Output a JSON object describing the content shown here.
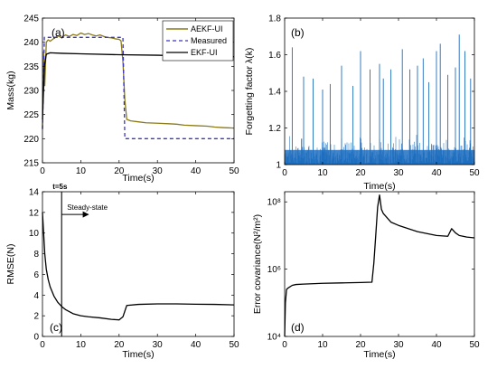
{
  "chart_data": [
    {
      "id": "a",
      "type": "line",
      "panel_label": "(a)",
      "xlabel": "Time(s)",
      "ylabel": "Mass(kg)",
      "xlim": [
        0,
        50
      ],
      "ylim": [
        215,
        245
      ],
      "x_ticks": [
        0,
        10,
        20,
        30,
        40,
        50
      ],
      "y_ticks": [
        215,
        220,
        225,
        230,
        235,
        240,
        245
      ],
      "legend": {
        "placement": "top-right",
        "entries": [
          "AEKF-UI",
          "Measured",
          "EKF-UI"
        ]
      },
      "series": [
        {
          "name": "AEKF-UI",
          "color": "#8b7a18",
          "style": "solid",
          "x": [
            0,
            0.3,
            0.6,
            1,
            1.5,
            2,
            3,
            4,
            5,
            6,
            7,
            8,
            9,
            10,
            11,
            12,
            13,
            14,
            15,
            16,
            17,
            18,
            19,
            20,
            20.5,
            21,
            21.5,
            22,
            23,
            25,
            27,
            30,
            33,
            35,
            37,
            40,
            43,
            45,
            47,
            50
          ],
          "y": [
            222,
            238,
            231,
            240,
            240.5,
            240.2,
            240.8,
            241.3,
            241,
            241.5,
            241.2,
            241.6,
            241.4,
            241.9,
            241.6,
            241.8,
            241.5,
            241.3,
            241.5,
            241.2,
            241,
            240.9,
            240.7,
            240.6,
            240.3,
            236,
            228,
            224,
            223.7,
            223.5,
            223.3,
            223.2,
            223.1,
            223,
            222.8,
            222.7,
            222.6,
            222.4,
            222.3,
            222.2
          ]
        },
        {
          "name": "Measured",
          "color": "#3a36c8",
          "style": "dashed",
          "x": [
            0,
            0.5,
            21,
            21.5,
            50
          ],
          "y": [
            222,
            241,
            241,
            220,
            220
          ]
        },
        {
          "name": "EKF-UI",
          "color": "#000000",
          "style": "solid",
          "x": [
            0,
            0.5,
            1,
            2,
            5,
            10,
            20,
            30,
            40,
            50
          ],
          "y": [
            224,
            235,
            237.5,
            237.8,
            237.7,
            237.6,
            237.4,
            237.3,
            237.1,
            237
          ]
        }
      ]
    },
    {
      "id": "b",
      "type": "line",
      "panel_label": "(b)",
      "xlabel": "Time(s)",
      "ylabel": "Forgetting factor λ(k)",
      "xlim": [
        0,
        50
      ],
      "ylim": [
        1,
        1.8
      ],
      "x_ticks": [
        0,
        10,
        20,
        30,
        40,
        50
      ],
      "y_ticks": [
        1,
        1.2,
        1.4,
        1.6,
        1.8
      ],
      "series": [
        {
          "color": "#1f6fbf",
          "style": "spikes",
          "dense_band_top": 1.12,
          "peaks_x": [
            2,
            5,
            7.5,
            10,
            12,
            15,
            18,
            20,
            22.5,
            25,
            26,
            28,
            31,
            33,
            35,
            36.5,
            38,
            40,
            41,
            43,
            45,
            46,
            47.5,
            49
          ],
          "peaks_y": [
            1.64,
            1.48,
            1.47,
            1.41,
            1.44,
            1.54,
            1.43,
            1.62,
            1.52,
            1.55,
            1.47,
            1.52,
            1.63,
            1.52,
            1.54,
            1.58,
            1.45,
            1.62,
            1.66,
            1.49,
            1.53,
            1.71,
            1.62,
            1.47
          ]
        }
      ]
    },
    {
      "id": "c",
      "type": "line",
      "panel_label": "(c)",
      "xlabel": "Time(s)",
      "ylabel": "RMSE(N)",
      "xlim": [
        0,
        50
      ],
      "ylim": [
        0,
        14
      ],
      "x_ticks": [
        0,
        10,
        20,
        30,
        40,
        50
      ],
      "y_ticks": [
        0,
        2,
        4,
        6,
        8,
        10,
        12,
        14
      ],
      "annotations": [
        {
          "text": "t=5s",
          "x": 5
        },
        {
          "text": "Steady-state",
          "x_start": 5,
          "x_end": 12,
          "y": 11.8
        }
      ],
      "series": [
        {
          "color": "#000000",
          "style": "solid",
          "x": [
            0,
            0.3,
            0.6,
            1,
            1.5,
            2,
            3,
            4,
            5,
            6,
            7,
            8,
            10,
            12,
            15,
            18,
            20,
            21,
            22,
            25,
            30,
            35,
            40,
            45,
            50
          ],
          "y": [
            12,
            10,
            8,
            6.5,
            5.5,
            4.8,
            3.9,
            3.3,
            2.9,
            2.6,
            2.4,
            2.2,
            2.0,
            1.9,
            1.8,
            1.65,
            1.6,
            1.9,
            3.0,
            3.1,
            3.15,
            3.15,
            3.12,
            3.1,
            3.05
          ]
        }
      ]
    },
    {
      "id": "d",
      "type": "line",
      "panel_label": "(d)",
      "xlabel": "Time(s)",
      "ylabel": "Error covariance(N²/m²)",
      "yscale": "log",
      "xlim": [
        0,
        50
      ],
      "ylim": [
        10000,
        200000000
      ],
      "x_ticks": [
        0,
        10,
        20,
        30,
        40,
        50
      ],
      "y_ticks": [
        10000,
        1000000,
        100000000
      ],
      "y_tick_labels": [
        "10⁴",
        "10⁶",
        "10⁸"
      ],
      "series": [
        {
          "color": "#000000",
          "style": "solid",
          "x": [
            0,
            0.2,
            0.5,
            1,
            2,
            3,
            5,
            10,
            15,
            20,
            23,
            23.5,
            24,
            24.5,
            25,
            25.5,
            26,
            28,
            30,
            35,
            40,
            43,
            44,
            45,
            46,
            47,
            48,
            50
          ],
          "y": [
            10000,
            100000,
            250000,
            280000,
            330000,
            350000,
            360000,
            380000,
            390000,
            400000,
            410000,
            1500000,
            10000000,
            70000000,
            160000000,
            60000000,
            45000000,
            25000000,
            20000000,
            13000000,
            10000000,
            9500000,
            16000000,
            12000000,
            10000000,
            9500000,
            9000000,
            8500000
          ]
        }
      ]
    }
  ]
}
